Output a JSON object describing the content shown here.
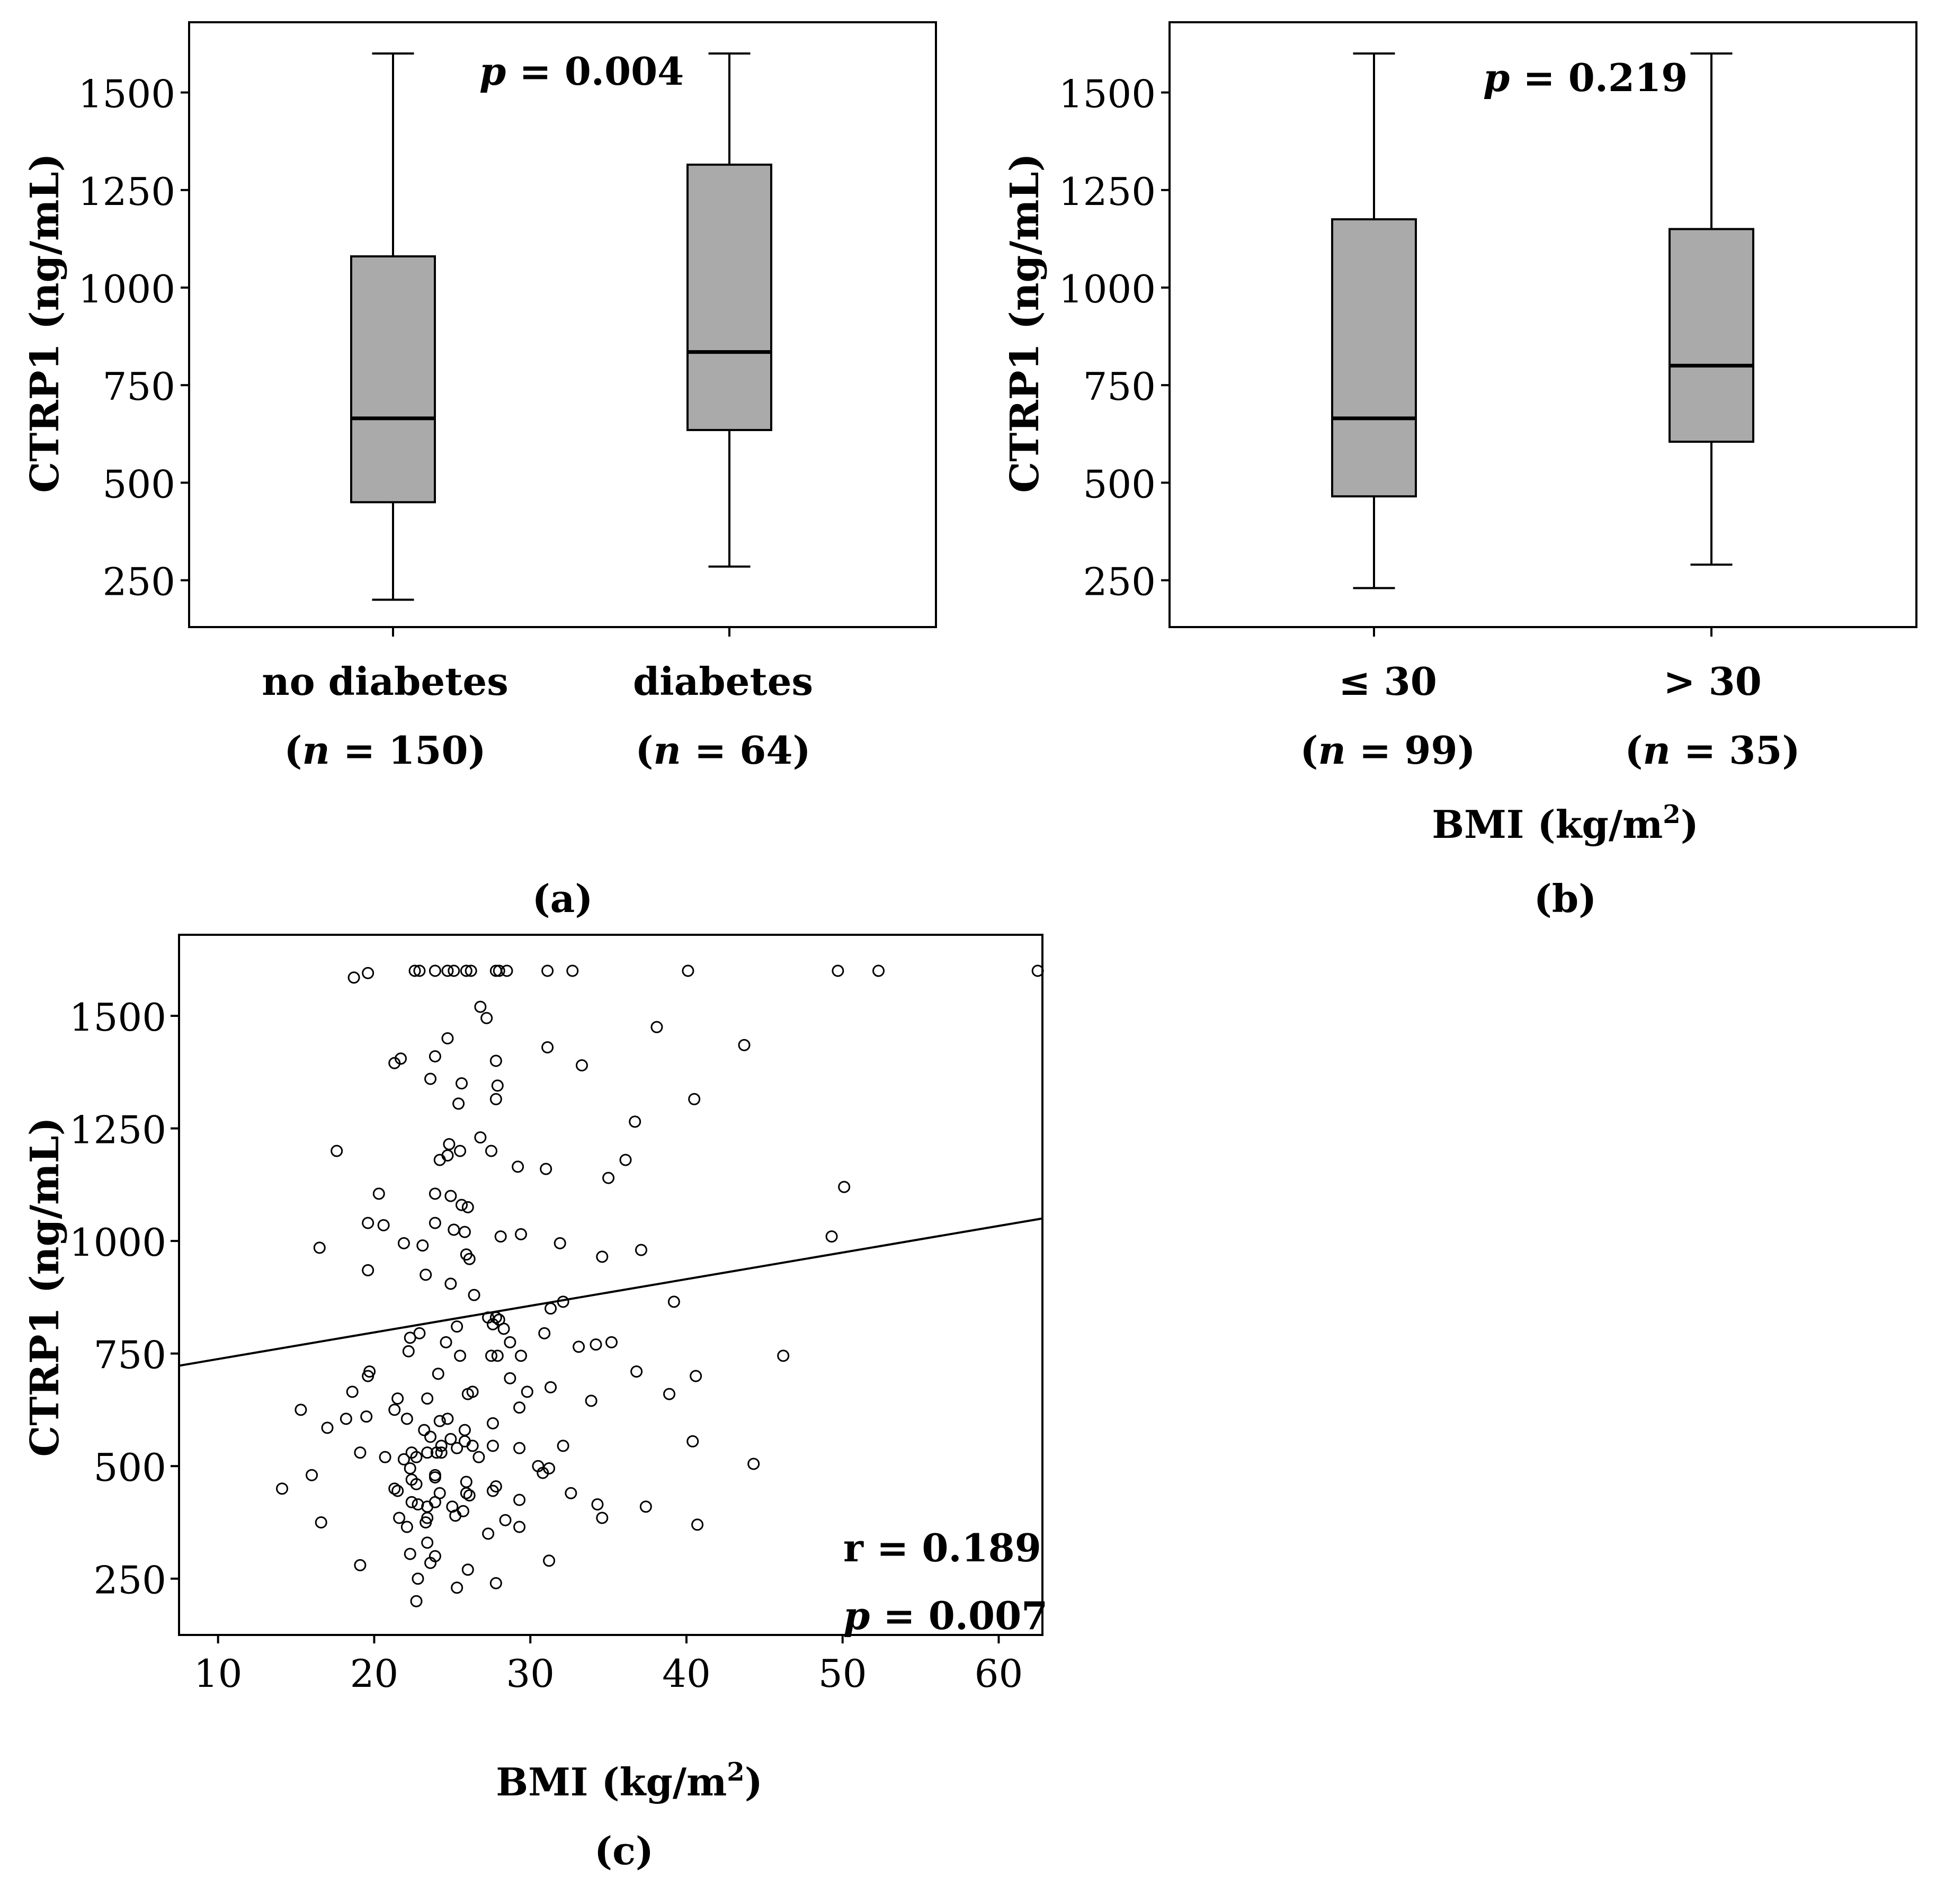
{
  "chart_data": [
    {
      "panel": "(a)",
      "type": "box",
      "ylabel": "CTRP1 (ng/mL)",
      "ylim": [
        130,
        1680
      ],
      "yticks": [
        250,
        500,
        750,
        1000,
        1250,
        1500
      ],
      "stat": {
        "p_label": "p",
        "p_text": " = 0.004"
      },
      "groups": [
        {
          "label": "no diabetes",
          "n_pre": "(",
          "n_var": "n",
          "n_post": " = 150)",
          "min": 200,
          "q1": 450,
          "median": 665,
          "q3": 1080,
          "max": 1600
        },
        {
          "label": "diabetes",
          "n_pre": "(",
          "n_var": "n",
          "n_post": " = 64)",
          "min": 285,
          "q1": 635,
          "median": 835,
          "q3": 1315,
          "max": 1600
        }
      ]
    },
    {
      "panel": "(b)",
      "type": "box",
      "ylabel": "CTRP1 (ng/mL)",
      "xlabel": "BMI (kg/m",
      "xlabel_sup": "2",
      "xlabel_end": ")",
      "ylim": [
        130,
        1680
      ],
      "yticks": [
        250,
        500,
        750,
        1000,
        1250,
        1500
      ],
      "stat": {
        "p_label": "p",
        "p_text": " = 0.219"
      },
      "groups": [
        {
          "label": "≤ 30",
          "n_pre": "(",
          "n_var": "n",
          "n_post": " = 99)",
          "min": 230,
          "q1": 465,
          "median": 665,
          "q3": 1175,
          "max": 1600
        },
        {
          "label": "> 30",
          "n_pre": "(",
          "n_var": "n",
          "n_post": " = 35)",
          "min": 290,
          "q1": 605,
          "median": 800,
          "q3": 1150,
          "max": 1600
        }
      ]
    },
    {
      "panel": "(c)",
      "type": "scatter",
      "ylabel": "CTRP1 (ng/mL)",
      "xlabel": "BMI (kg/m",
      "xlabel_sup": "2",
      "xlabel_end": ")",
      "xlim": [
        7.5,
        62.8
      ],
      "ylim": [
        125,
        1680
      ],
      "xticks": [
        10,
        20,
        30,
        40,
        50,
        60
      ],
      "yticks": [
        250,
        500,
        750,
        1000,
        1250,
        1500
      ],
      "regression": {
        "x": [
          7.5,
          62.8
        ],
        "y": [
          723,
          1050
        ]
      },
      "stat": {
        "r_text": "r = 0.189",
        "p_label": "p",
        "p_text": " = 0.007"
      },
      "points": [
        [
          18.7,
          1585
        ],
        [
          19.6,
          1595
        ],
        [
          22.6,
          1600
        ],
        [
          22.9,
          1600
        ],
        [
          23.9,
          1600
        ],
        [
          24.7,
          1600
        ],
        [
          25.1,
          1600
        ],
        [
          25.9,
          1600
        ],
        [
          26.2,
          1600
        ],
        [
          27.8,
          1600
        ],
        [
          28.0,
          1600
        ],
        [
          28.5,
          1600
        ],
        [
          31.1,
          1600
        ],
        [
          32.7,
          1600
        ],
        [
          40.1,
          1600
        ],
        [
          49.7,
          1600
        ],
        [
          52.3,
          1600
        ],
        [
          62.5,
          1600
        ],
        [
          26.8,
          1520
        ],
        [
          27.2,
          1495
        ],
        [
          38.1,
          1475
        ],
        [
          24.7,
          1450
        ],
        [
          31.1,
          1430
        ],
        [
          43.7,
          1435
        ],
        [
          21.7,
          1405
        ],
        [
          21.3,
          1395
        ],
        [
          23.9,
          1410
        ],
        [
          27.8,
          1400
        ],
        [
          33.3,
          1390
        ],
        [
          23.6,
          1360
        ],
        [
          25.6,
          1350
        ],
        [
          27.9,
          1345
        ],
        [
          25.4,
          1305
        ],
        [
          27.8,
          1315
        ],
        [
          40.5,
          1315
        ],
        [
          36.7,
          1265
        ],
        [
          17.6,
          1200
        ],
        [
          24.2,
          1180
        ],
        [
          24.7,
          1190
        ],
        [
          25.5,
          1200
        ],
        [
          24.8,
          1215
        ],
        [
          26.8,
          1230
        ],
        [
          27.5,
          1200
        ],
        [
          29.2,
          1165
        ],
        [
          31.0,
          1160
        ],
        [
          35.0,
          1140
        ],
        [
          36.1,
          1180
        ],
        [
          20.3,
          1105
        ],
        [
          23.9,
          1105
        ],
        [
          24.9,
          1100
        ],
        [
          25.6,
          1080
        ],
        [
          26.0,
          1075
        ],
        [
          19.6,
          1040
        ],
        [
          20.6,
          1035
        ],
        [
          23.9,
          1040
        ],
        [
          25.1,
          1025
        ],
        [
          25.8,
          1020
        ],
        [
          28.1,
          1010
        ],
        [
          29.4,
          1015
        ],
        [
          31.9,
          995
        ],
        [
          16.5,
          985
        ],
        [
          21.9,
          995
        ],
        [
          23.1,
          990
        ],
        [
          25.9,
          970
        ],
        [
          26.1,
          960
        ],
        [
          34.6,
          965
        ],
        [
          37.1,
          980
        ],
        [
          49.3,
          1010
        ],
        [
          50.1,
          1120
        ],
        [
          19.6,
          935
        ],
        [
          23.3,
          925
        ],
        [
          24.9,
          905
        ],
        [
          26.4,
          880
        ],
        [
          32.1,
          865
        ],
        [
          39.2,
          865
        ],
        [
          31.3,
          850
        ],
        [
          27.3,
          830
        ],
        [
          27.8,
          830
        ],
        [
          28.0,
          825
        ],
        [
          27.6,
          815
        ],
        [
          25.3,
          810
        ],
        [
          28.3,
          805
        ],
        [
          22.9,
          795
        ],
        [
          22.3,
          785
        ],
        [
          24.6,
          775
        ],
        [
          28.7,
          775
        ],
        [
          30.9,
          795
        ],
        [
          33.1,
          765
        ],
        [
          34.2,
          770
        ],
        [
          35.2,
          775
        ],
        [
          22.2,
          755
        ],
        [
          25.5,
          745
        ],
        [
          27.5,
          745
        ],
        [
          27.9,
          745
        ],
        [
          29.4,
          745
        ],
        [
          46.2,
          745
        ],
        [
          19.6,
          700
        ],
        [
          19.7,
          710
        ],
        [
          24.1,
          705
        ],
        [
          28.7,
          695
        ],
        [
          36.8,
          710
        ],
        [
          40.6,
          700
        ],
        [
          18.6,
          665
        ],
        [
          23.4,
          650
        ],
        [
          26.0,
          660
        ],
        [
          26.3,
          665
        ],
        [
          29.8,
          665
        ],
        [
          31.3,
          675
        ],
        [
          21.5,
          650
        ],
        [
          21.3,
          625
        ],
        [
          22.1,
          605
        ],
        [
          24.2,
          600
        ],
        [
          24.7,
          605
        ],
        [
          25.8,
          580
        ],
        [
          27.6,
          595
        ],
        [
          29.3,
          630
        ],
        [
          15.3,
          625
        ],
        [
          18.2,
          605
        ],
        [
          19.5,
          610
        ],
        [
          33.9,
          645
        ],
        [
          38.9,
          660
        ],
        [
          17.0,
          585
        ],
        [
          23.2,
          580
        ],
        [
          23.6,
          565
        ],
        [
          24.9,
          560
        ],
        [
          25.8,
          555
        ],
        [
          26.3,
          545
        ],
        [
          24.3,
          545
        ],
        [
          25.3,
          540
        ],
        [
          27.6,
          545
        ],
        [
          29.3,
          540
        ],
        [
          32.1,
          545
        ],
        [
          40.4,
          555
        ],
        [
          19.1,
          530
        ],
        [
          20.7,
          520
        ],
        [
          21.9,
          515
        ],
        [
          22.4,
          530
        ],
        [
          22.7,
          520
        ],
        [
          23.4,
          530
        ],
        [
          24.0,
          530
        ],
        [
          24.3,
          530
        ],
        [
          26.7,
          520
        ],
        [
          22.3,
          495
        ],
        [
          30.5,
          500
        ],
        [
          31.2,
          495
        ],
        [
          30.8,
          485
        ],
        [
          23.9,
          480
        ],
        [
          23.9,
          475
        ],
        [
          25.9,
          465
        ],
        [
          22.4,
          470
        ],
        [
          22.7,
          460
        ],
        [
          44.3,
          505
        ],
        [
          14.1,
          450
        ],
        [
          16.0,
          480
        ],
        [
          21.3,
          450
        ],
        [
          21.5,
          445
        ],
        [
          24.2,
          440
        ],
        [
          25.9,
          440
        ],
        [
          26.1,
          435
        ],
        [
          27.6,
          445
        ],
        [
          27.8,
          455
        ],
        [
          29.3,
          425
        ],
        [
          32.6,
          440
        ],
        [
          22.4,
          420
        ],
        [
          22.8,
          415
        ],
        [
          23.4,
          410
        ],
        [
          23.9,
          420
        ],
        [
          25.0,
          410
        ],
        [
          25.7,
          400
        ],
        [
          34.3,
          415
        ],
        [
          37.4,
          410
        ],
        [
          16.6,
          375
        ],
        [
          21.6,
          385
        ],
        [
          22.1,
          365
        ],
        [
          23.4,
          385
        ],
        [
          23.3,
          375
        ],
        [
          25.2,
          390
        ],
        [
          28.4,
          380
        ],
        [
          29.3,
          365
        ],
        [
          34.6,
          385
        ],
        [
          40.7,
          370
        ],
        [
          27.3,
          350
        ],
        [
          23.4,
          330
        ],
        [
          22.3,
          305
        ],
        [
          23.9,
          300
        ],
        [
          23.6,
          285
        ],
        [
          31.2,
          290
        ],
        [
          19.1,
          280
        ],
        [
          26.0,
          270
        ],
        [
          22.8,
          250
        ],
        [
          27.8,
          240
        ],
        [
          25.3,
          230
        ],
        [
          22.7,
          200
        ]
      ]
    }
  ],
  "panel_labels": {
    "a": "(a)",
    "b": "(b)",
    "c": "(c)"
  }
}
